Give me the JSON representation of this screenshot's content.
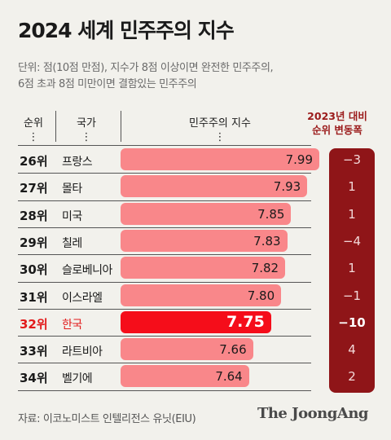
{
  "title": "2024 세계 민주주의 지수",
  "subtitle": {
    "line1": "단위: 점(10점 만점), 지수가 8점 이상이면  완전한 민주주의,",
    "line2": "6점 초과 8점 미만이면 결함있는 민주주의"
  },
  "headers": {
    "rank": "순위",
    "country": "국가",
    "index": "민주주의 지수",
    "change_line1": "2023년 대비",
    "change_line2": "순위 변동폭",
    "ellipsis": "⋮"
  },
  "colors": {
    "bar": "#f9878a",
    "bar_highlight": "#f50d1a",
    "change_bg": "#8f1518",
    "highlight_text": "#e21b1b"
  },
  "chart_data": {
    "type": "bar",
    "orientation": "horizontal",
    "ranks": [
      "26위",
      "27위",
      "28위",
      "29위",
      "30위",
      "31위",
      "32위",
      "33위",
      "34위"
    ],
    "categories": [
      "프랑스",
      "몰타",
      "미국",
      "칠레",
      "슬로베니아",
      "이스라엘",
      "한국",
      "라트비아",
      "벨기에"
    ],
    "values": [
      7.99,
      7.93,
      7.85,
      7.83,
      7.82,
      7.8,
      7.75,
      7.66,
      7.64
    ],
    "value_labels": [
      "7.99",
      "7.93",
      "7.85",
      "7.83",
      "7.82",
      "7.80",
      "7.75",
      "7.66",
      "7.64"
    ],
    "rank_change": [
      "−3",
      "1",
      "1",
      "−4",
      "1",
      "−1",
      "−10",
      "4",
      "2"
    ],
    "highlight_index": 6
  },
  "footer": {
    "source": "자료: 이코노미스트 인텔리전스 유닛(EIU)",
    "brand": "The JoongAng"
  }
}
